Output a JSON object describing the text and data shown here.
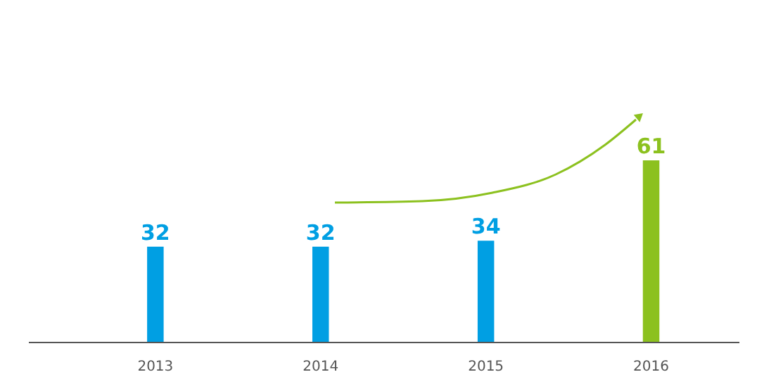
{
  "chart_data": {
    "type": "bar",
    "categories": [
      "2013",
      "2014",
      "2015",
      "2016"
    ],
    "values": [
      32,
      32,
      34,
      61
    ],
    "colors": [
      "#009fe3",
      "#009fe3",
      "#009fe3",
      "#8cc11f"
    ],
    "data_labels": true,
    "grid": false
  }
}
